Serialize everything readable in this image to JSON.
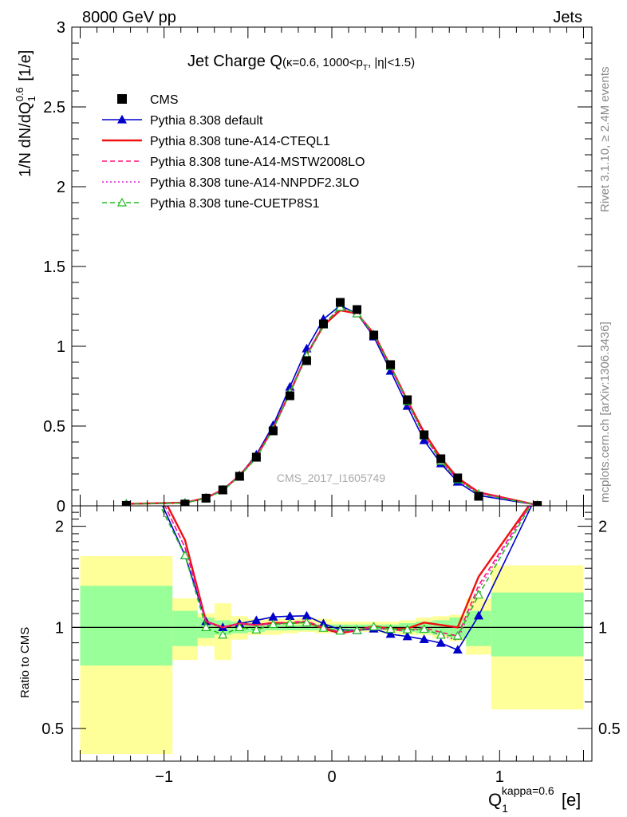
{
  "header": {
    "left": "8000 GeV pp",
    "right": "Jets"
  },
  "title": {
    "main": "Jet Charge Q",
    "sub_a": "(κ=0.6, 1000<p",
    "sub_b": "T",
    "sub_c": ", |η|<1.5)"
  },
  "side_text": {
    "rivet": "Rivet 3.1.10, ≥ 2.4M events",
    "mcplots": "mcplots.cern.ch [arXiv:1306.3436]"
  },
  "watermark": "CMS_2017_I1605749",
  "ylabel_top": {
    "a": "1/N dN/dQ",
    "sub": "1",
    "sup": "0.6",
    "b": " [1/e]"
  },
  "ylabel_bottom": "Ratio to CMS",
  "xlabel": {
    "a": "Q",
    "sub": "1",
    "sup": "kappa=0.6",
    "b": " [e]"
  },
  "colors": {
    "cms": "#000000",
    "default": "#0000cc",
    "cteql1": "#ee1111",
    "mstw": "#ff1177",
    "nnpdf": "#dd22cc",
    "cuetp8s1": "#22bb22",
    "band_outer": "#ffff99",
    "band_inner": "#99ff99"
  },
  "chart_data": {
    "type": "line",
    "xlim": [
      -1.55,
      1.55
    ],
    "ylim_top": [
      0,
      3
    ],
    "ylim_ratio": [
      0.4,
      2.3
    ],
    "x_ticks": [
      "−1",
      "0",
      "1"
    ],
    "y_ticks_top": [
      "0",
      "0.5",
      "1",
      "1.5",
      "2",
      "2.5",
      "3"
    ],
    "y_ticks_ratio": [
      "0.5",
      "1",
      "2"
    ],
    "bins": [
      [
        -1.5,
        -0.95
      ],
      [
        -0.95,
        -0.8
      ],
      [
        -0.8,
        -0.7
      ],
      [
        -0.7,
        -0.6
      ],
      [
        -0.6,
        -0.5
      ],
      [
        -0.5,
        -0.4
      ],
      [
        -0.4,
        -0.3
      ],
      [
        -0.3,
        -0.2
      ],
      [
        -0.2,
        -0.1
      ],
      [
        -0.1,
        0.0
      ],
      [
        0.0,
        0.1
      ],
      [
        0.1,
        0.2
      ],
      [
        0.2,
        0.3
      ],
      [
        0.3,
        0.4
      ],
      [
        0.4,
        0.5
      ],
      [
        0.5,
        0.6
      ],
      [
        0.6,
        0.7
      ],
      [
        0.7,
        0.8
      ],
      [
        0.8,
        0.95
      ],
      [
        0.95,
        1.5
      ]
    ],
    "x": [
      -1.225,
      -0.875,
      -0.75,
      -0.65,
      -0.55,
      -0.45,
      -0.35,
      -0.25,
      -0.15,
      -0.05,
      0.05,
      0.15,
      0.25,
      0.35,
      0.45,
      0.55,
      0.65,
      0.75,
      0.875,
      1.225
    ],
    "cms": [
      0.003,
      0.011,
      0.048,
      0.1,
      0.185,
      0.305,
      0.47,
      0.69,
      0.91,
      1.14,
      1.275,
      1.23,
      1.07,
      0.885,
      0.665,
      0.445,
      0.295,
      0.175,
      0.06,
      0.002
    ],
    "series": [
      {
        "name": "Pythia 8.308 default",
        "color_key": "default",
        "dash": "solid",
        "marker": "triangle-filled",
        "values": [
          0.012,
          0.018,
          0.05,
          0.1,
          0.19,
          0.32,
          0.505,
          0.745,
          0.985,
          1.17,
          1.255,
          1.205,
          1.06,
          0.845,
          0.625,
          0.41,
          0.265,
          0.15,
          0.065,
          0.005
        ]
      },
      {
        "name": "Pythia 8.308 tune-A14-CTEQL1",
        "color_key": "cteql1",
        "dash": "solid",
        "marker": "none",
        "values": [
          0.012,
          0.02,
          0.05,
          0.1,
          0.19,
          0.31,
          0.485,
          0.71,
          0.945,
          1.13,
          1.225,
          1.205,
          1.08,
          0.875,
          0.66,
          0.46,
          0.3,
          0.175,
          0.085,
          0.005
        ]
      },
      {
        "name": "Pythia 8.308 tune-A14-MSTW2008LO",
        "color_key": "mstw",
        "dash": "dashed",
        "marker": "none",
        "values": [
          0.012,
          0.019,
          0.05,
          0.1,
          0.19,
          0.31,
          0.485,
          0.715,
          0.95,
          1.14,
          1.235,
          1.205,
          1.07,
          0.87,
          0.65,
          0.445,
          0.285,
          0.165,
          0.08,
          0.005
        ]
      },
      {
        "name": "Pythia 8.308 tune-A14-NNPDF2.3LO",
        "color_key": "nnpdf",
        "dash": "dotted",
        "marker": "none",
        "values": [
          0.012,
          0.019,
          0.05,
          0.1,
          0.19,
          0.31,
          0.48,
          0.71,
          0.945,
          1.14,
          1.24,
          1.21,
          1.075,
          0.87,
          0.65,
          0.44,
          0.28,
          0.16,
          0.078,
          0.005
        ]
      },
      {
        "name": "Pythia 8.308 tune-CUETP8S1",
        "color_key": "cuetp8s1",
        "dash": "dashed",
        "marker": "triangle-open",
        "values": [
          0.011,
          0.018,
          0.048,
          0.095,
          0.185,
          0.3,
          0.48,
          0.71,
          0.94,
          1.135,
          1.245,
          1.205,
          1.075,
          0.875,
          0.655,
          0.44,
          0.28,
          0.165,
          0.075,
          0.005
        ]
      }
    ],
    "ratio_band_inner": [
      [
        0.77,
        1.33
      ],
      [
        0.88,
        1.12
      ],
      [
        0.93,
        1.07
      ],
      [
        0.95,
        1.05
      ],
      [
        0.96,
        1.04
      ],
      [
        0.97,
        1.03
      ],
      [
        0.98,
        1.02
      ],
      [
        0.98,
        1.02
      ],
      [
        0.98,
        1.02
      ],
      [
        0.98,
        1.02
      ],
      [
        0.98,
        1.02
      ],
      [
        0.98,
        1.02
      ],
      [
        0.98,
        1.02
      ],
      [
        0.98,
        1.02
      ],
      [
        0.97,
        1.03
      ],
      [
        0.96,
        1.04
      ],
      [
        0.95,
        1.05
      ],
      [
        0.93,
        1.07
      ],
      [
        0.88,
        1.12
      ],
      [
        0.82,
        1.27
      ]
    ],
    "ratio_band_outer": [
      [
        0.42,
        1.63
      ],
      [
        0.8,
        1.22
      ],
      [
        0.88,
        1.1
      ],
      [
        0.8,
        1.18
      ],
      [
        0.92,
        1.08
      ],
      [
        0.95,
        1.06
      ],
      [
        0.95,
        1.06
      ],
      [
        0.96,
        1.06
      ],
      [
        0.97,
        1.07
      ],
      [
        0.96,
        1.06
      ],
      [
        0.97,
        1.04
      ],
      [
        0.97,
        1.04
      ],
      [
        0.97,
        1.04
      ],
      [
        0.96,
        1.04
      ],
      [
        0.95,
        1.05
      ],
      [
        0.95,
        1.07
      ],
      [
        0.93,
        1.08
      ],
      [
        0.91,
        1.09
      ],
      [
        0.83,
        1.22
      ],
      [
        0.57,
        1.53
      ]
    ]
  }
}
